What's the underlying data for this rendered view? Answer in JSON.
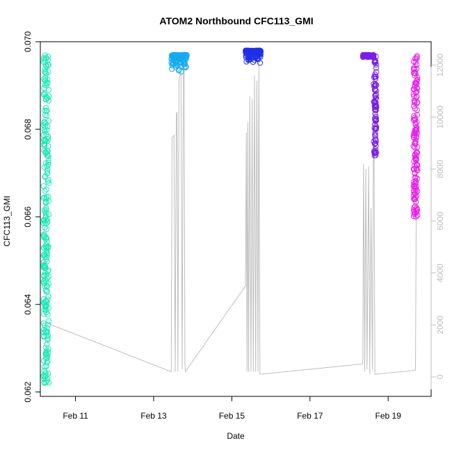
{
  "chart_data": {
    "type": "scatter",
    "title": "ATOM2 Northbound CFC113_GMI",
    "xlabel": "Date",
    "ylabel": "CFC113_GMI",
    "x_ticks": [
      "Feb 11",
      "Feb 13",
      "Feb 15",
      "Feb 17",
      "Feb 19"
    ],
    "y_ticks": [
      "0.062",
      "0.064",
      "0.066",
      "0.068",
      "0.070"
    ],
    "y2_ticks": [
      "0",
      "2000",
      "4000",
      "6000",
      "8000",
      "10000",
      "12000"
    ],
    "xlim": [
      "Feb 10.1",
      "Feb 20.1"
    ],
    "ylim": [
      0.0619,
      0.07
    ],
    "y2lim": [
      -750,
      12900
    ],
    "grid": false,
    "series": [
      {
        "color": "#1de9b6",
        "x_range": [
          "Feb 10.15",
          "Feb 10.35"
        ],
        "y_range": [
          0.0622,
          0.0697
        ]
      },
      {
        "color": "#16aaf0",
        "x_range": [
          "Feb 13.45",
          "Feb 13.85"
        ],
        "y_range": [
          0.0693,
          0.0697
        ]
      },
      {
        "color": "#1f2ee8",
        "x_range": [
          "Feb 15.35",
          "Feb 15.75"
        ],
        "y_range": [
          0.0695,
          0.0698
        ]
      },
      {
        "color": "#7a1fe8",
        "x_range": [
          "Feb 18.35",
          "Feb 18.7"
        ],
        "y_range": [
          0.0674,
          0.0697
        ]
      },
      {
        "color": "#e81fe8",
        "x_range": [
          "Feb 19.65",
          "Feb 19.75"
        ],
        "y_range": [
          0.066,
          0.0697
        ]
      }
    ],
    "altitude_series": {
      "color": "#bebebe",
      "axis": "right"
    }
  }
}
